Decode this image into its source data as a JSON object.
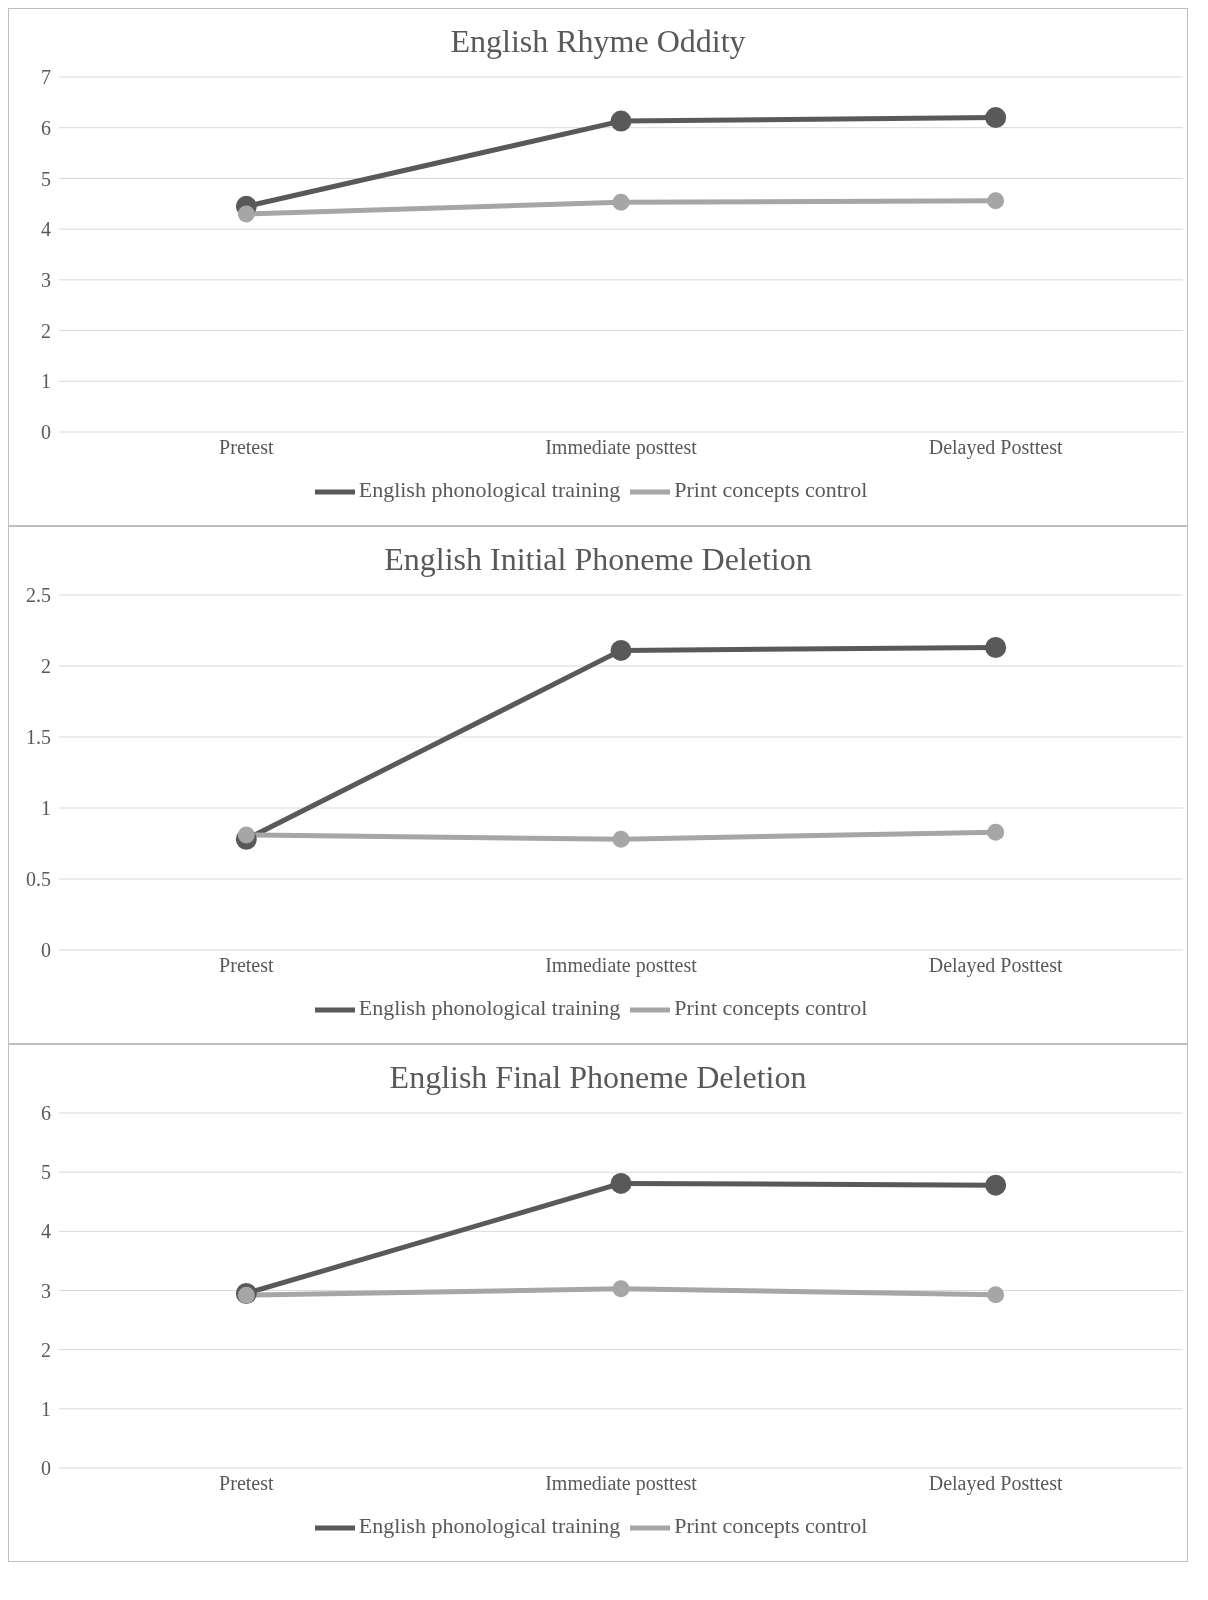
{
  "chart_data": [
    {
      "type": "line",
      "title": "English Rhyme Oddity",
      "categories": [
        "Pretest",
        "Immediate posttest",
        "Delayed Posttest"
      ],
      "series": [
        {
          "name": "English phonological training",
          "color": "#595959",
          "values": [
            4.45,
            6.13,
            6.2
          ]
        },
        {
          "name": "Print concepts control",
          "color": "#a6a6a6",
          "values": [
            4.3,
            4.53,
            4.56
          ]
        }
      ],
      "ylim": [
        0,
        7
      ],
      "yticks": [
        0,
        1,
        2,
        3,
        4,
        5,
        6,
        7
      ],
      "grid": "y",
      "legend": "bottom",
      "marker": "circle",
      "line_style": "solid"
    },
    {
      "type": "line",
      "title": "English Initial Phoneme Deletion",
      "categories": [
        "Pretest",
        "Immediate posttest",
        "Delayed Posttest"
      ],
      "series": [
        {
          "name": "English phonological training",
          "color": "#595959",
          "values": [
            0.78,
            2.11,
            2.13
          ]
        },
        {
          "name": "Print concepts control",
          "color": "#a6a6a6",
          "values": [
            0.81,
            0.78,
            0.83
          ]
        }
      ],
      "ylim": [
        0,
        2.5
      ],
      "yticks": [
        0,
        0.5,
        1,
        1.5,
        2,
        2.5
      ],
      "grid": "y",
      "legend": "bottom",
      "marker": "circle",
      "line_style": "solid"
    },
    {
      "type": "line",
      "title": "English Final Phoneme Deletion",
      "categories": [
        "Pretest",
        "Immediate posttest",
        "Delayed Posttest"
      ],
      "series": [
        {
          "name": "English phonological training",
          "color": "#595959",
          "values": [
            2.95,
            4.81,
            4.78
          ]
        },
        {
          "name": "Print concepts control",
          "color": "#a6a6a6",
          "values": [
            2.92,
            3.03,
            2.93
          ]
        }
      ],
      "ylim": [
        0,
        6
      ],
      "yticks": [
        0,
        1,
        2,
        3,
        4,
        5,
        6
      ],
      "grid": "y",
      "legend": "bottom",
      "marker": "circle",
      "line_style": "solid"
    }
  ]
}
